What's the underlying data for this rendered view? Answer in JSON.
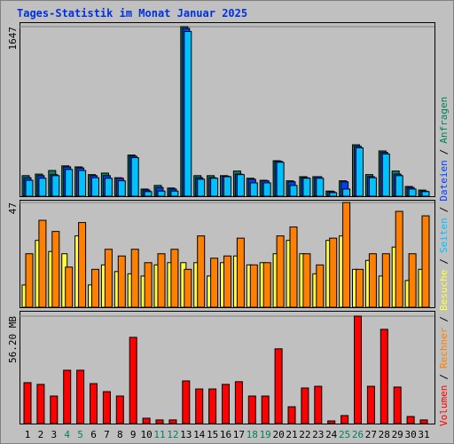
{
  "title": "Tages-Statistik im Monat Januar 2025",
  "legend_separator": "/",
  "x_axis": {
    "categories": [
      "1",
      "2",
      "3",
      "4",
      "5",
      "6",
      "7",
      "8",
      "9",
      "10",
      "11",
      "12",
      "13",
      "14",
      "15",
      "16",
      "17",
      "18",
      "19",
      "20",
      "21",
      "22",
      "23",
      "24",
      "25",
      "26",
      "27",
      "28",
      "29",
      "30",
      "31"
    ],
    "colors": [
      "#000000",
      "#000000",
      "#000000",
      "#00805c",
      "#00805c",
      "#000000",
      "#000000",
      "#000000",
      "#000000",
      "#000000",
      "#00805c",
      "#00805c",
      "#000000",
      "#000000",
      "#000000",
      "#000000",
      "#000000",
      "#00805c",
      "#00805c",
      "#000000",
      "#000000",
      "#000000",
      "#000000",
      "#000000",
      "#00805c",
      "#00805c",
      "#000000",
      "#000000",
      "#000000",
      "#000000",
      "#000000"
    ]
  },
  "chart_data": [
    {
      "type": "bar",
      "ylim": [
        0,
        1647
      ],
      "yticks": [
        1647
      ],
      "series": [
        {
          "name": "Anfragen",
          "color": "#00805c",
          "values": [
            200,
            215,
            250,
            295,
            285,
            210,
            225,
            180,
            400,
            70,
            105,
            80,
            1647,
            200,
            200,
            200,
            245,
            175,
            155,
            345,
            150,
            190,
            190,
            50,
            150,
            500,
            210,
            440,
            245,
            95,
            60
          ]
        },
        {
          "name": "Dateien",
          "color": "#0040ff",
          "values": [
            180,
            200,
            210,
            285,
            275,
            200,
            200,
            175,
            390,
            60,
            85,
            70,
            1630,
            180,
            180,
            195,
            215,
            165,
            150,
            340,
            140,
            180,
            190,
            45,
            140,
            485,
            190,
            425,
            215,
            85,
            50
          ]
        },
        {
          "name": "Seiten",
          "color": "#00c0ff",
          "values": [
            155,
            175,
            200,
            260,
            250,
            180,
            175,
            150,
            375,
            45,
            50,
            50,
            1600,
            165,
            175,
            190,
            210,
            130,
            130,
            330,
            105,
            175,
            175,
            35,
            70,
            470,
            180,
            410,
            200,
            70,
            45
          ]
        }
      ]
    },
    {
      "type": "bar",
      "ylim": [
        0,
        47
      ],
      "yticks": [
        47
      ],
      "series": [
        {
          "name": "Besuche",
          "color": "#ffff40",
          "values": [
            10,
            30,
            25,
            24,
            32,
            10,
            19,
            16,
            15,
            14,
            19,
            20,
            20,
            20,
            14,
            20,
            23,
            19,
            20,
            24,
            30,
            24,
            15,
            30,
            32,
            17,
            21,
            14,
            27,
            12,
            17
          ]
        },
        {
          "name": "Rechner",
          "color": "#ff8000",
          "values": [
            24,
            39,
            34,
            18,
            38,
            17,
            26,
            23,
            26,
            20,
            24,
            26,
            17,
            32,
            22,
            23,
            31,
            19,
            20,
            32,
            36,
            24,
            19,
            31,
            47,
            17,
            24,
            24,
            43,
            24,
            41
          ]
        }
      ]
    },
    {
      "type": "bar",
      "ylim": [
        0,
        56.2
      ],
      "yticks": [
        {
          "value": 56.2,
          "label": "56.20 MB"
        }
      ],
      "series": [
        {
          "name": "Volumen",
          "color": "#ff0000",
          "values": [
            21.4,
            20.5,
            14.4,
            27.9,
            27.9,
            20.9,
            16.7,
            14.4,
            45.1,
            2.8,
            1.9,
            1.9,
            22.3,
            18.1,
            18.1,
            20.5,
            21.9,
            14.4,
            14.4,
            39.1,
            8.8,
            18.6,
            19.5,
            1.4,
            4.2,
            56.2,
            19.5,
            49.3,
            19.1,
            3.7,
            1.9
          ]
        }
      ]
    }
  ]
}
